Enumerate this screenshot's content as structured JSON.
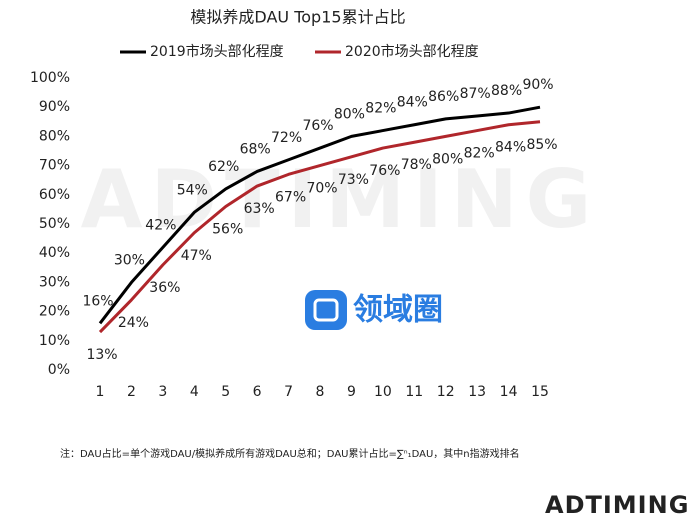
{
  "chart_data": {
    "type": "line",
    "title": "模拟养成DAU Top15累计占比",
    "categories": [
      1,
      2,
      3,
      4,
      5,
      6,
      7,
      8,
      9,
      10,
      11,
      12,
      13,
      14,
      15
    ],
    "series": [
      {
        "name": "2019市场头部化程度",
        "color": "#000000",
        "values": [
          16,
          30,
          42,
          54,
          62,
          68,
          72,
          76,
          80,
          82,
          84,
          86,
          87,
          88,
          90
        ],
        "value_labels": [
          "16%",
          "30%",
          "42%",
          "54%",
          "62%",
          "68%",
          "72%",
          "76%",
          "80%",
          "82%",
          "84%",
          "86%",
          "87%",
          "88%",
          "90%"
        ]
      },
      {
        "name": "2020市场头部化程度",
        "color": "#b0262b",
        "values": [
          13,
          24,
          36,
          47,
          56,
          63,
          67,
          70,
          73,
          76,
          78,
          80,
          82,
          84,
          85
        ],
        "value_labels": [
          "13%",
          "24%",
          "36%",
          "47%",
          "56%",
          "63%",
          "67%",
          "70%",
          "73%",
          "76%",
          "78%",
          "80%",
          "82%",
          "84%",
          "85%"
        ]
      }
    ],
    "ylim": [
      0,
      100
    ],
    "yticks": [
      {
        "value": 0,
        "label": "0%"
      },
      {
        "value": 10,
        "label": "10%"
      },
      {
        "value": 20,
        "label": "20%"
      },
      {
        "value": 30,
        "label": "30%"
      },
      {
        "value": 40,
        "label": "40%"
      },
      {
        "value": 50,
        "label": "50%"
      },
      {
        "value": 60,
        "label": "60%"
      },
      {
        "value": 70,
        "label": "70%"
      },
      {
        "value": 80,
        "label": "80%"
      },
      {
        "value": 90,
        "label": "90%"
      },
      {
        "value": 100,
        "label": "100%"
      }
    ],
    "grid": false,
    "legend": "top",
    "note": "注：DAU占比=单个游戏DAU/模拟养成所有游戏DAU总和；DAU累计占比=∑ⁿ₁DAU，其中n指游戏排名",
    "watermark": "领域圈",
    "logo": "ADTIMING"
  }
}
